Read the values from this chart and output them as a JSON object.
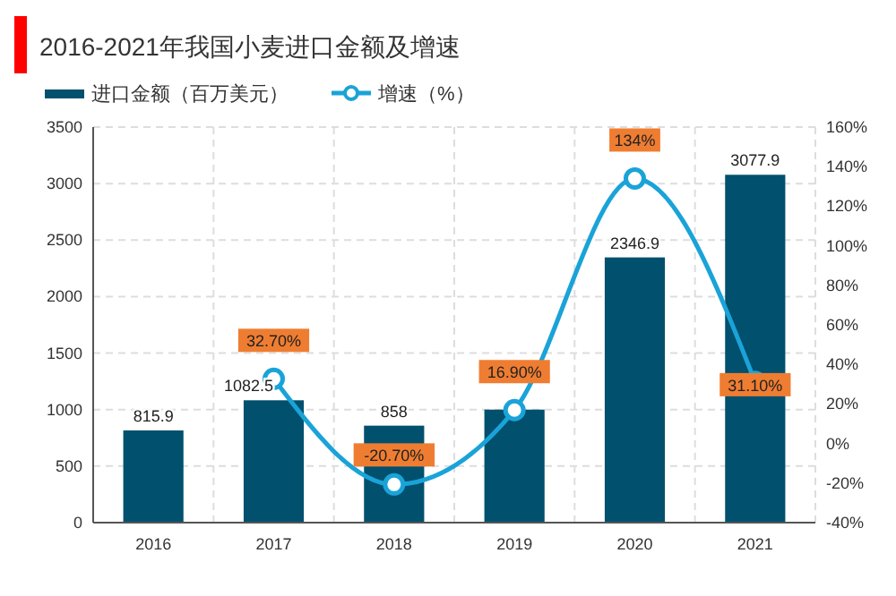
{
  "chart_data": {
    "type": "bar",
    "title": "2016-2021年我国小麦进口金额及增速",
    "categories": [
      "2016",
      "2017",
      "2018",
      "2019",
      "2020",
      "2021"
    ],
    "series": [
      {
        "name": "进口金额（百万美元）",
        "color": "#00506e",
        "values": [
          815.9,
          1082.5,
          858,
          1000,
          2346.9,
          3077.9
        ],
        "value_labels": [
          "815.9",
          "1082.5",
          "858",
          null,
          "2346.9",
          "3077.9"
        ]
      },
      {
        "name": "增速（%）",
        "type": "line",
        "axis": "y2",
        "color": "#1aa3d8",
        "marker": "circle",
        "values": [
          null,
          32.7,
          -20.7,
          16.9,
          134,
          31.1
        ],
        "value_labels": [
          null,
          "32.70%",
          "-20.70%",
          "16.90%",
          "134%",
          "31.10%"
        ]
      }
    ],
    "ylim": [
      0,
      3500
    ],
    "yticks": [
      0,
      500,
      1000,
      1500,
      2000,
      2500,
      3000,
      3500
    ],
    "y2lim": [
      -40,
      160
    ],
    "y2ticks": [
      {
        "value": -40,
        "label": "-40%"
      },
      {
        "value": -20,
        "label": "-20%"
      },
      {
        "value": 0,
        "label": "0%"
      },
      {
        "value": 20,
        "label": "20%"
      },
      {
        "value": 40,
        "label": "40%"
      },
      {
        "value": 60,
        "label": "60%"
      },
      {
        "value": 80,
        "label": "80%"
      },
      {
        "value": 100,
        "label": "100%"
      },
      {
        "value": 120,
        "label": "120%"
      },
      {
        "value": 140,
        "label": "140%"
      },
      {
        "value": 160,
        "label": "160%"
      }
    ],
    "grid": true,
    "legend": "top left"
  }
}
